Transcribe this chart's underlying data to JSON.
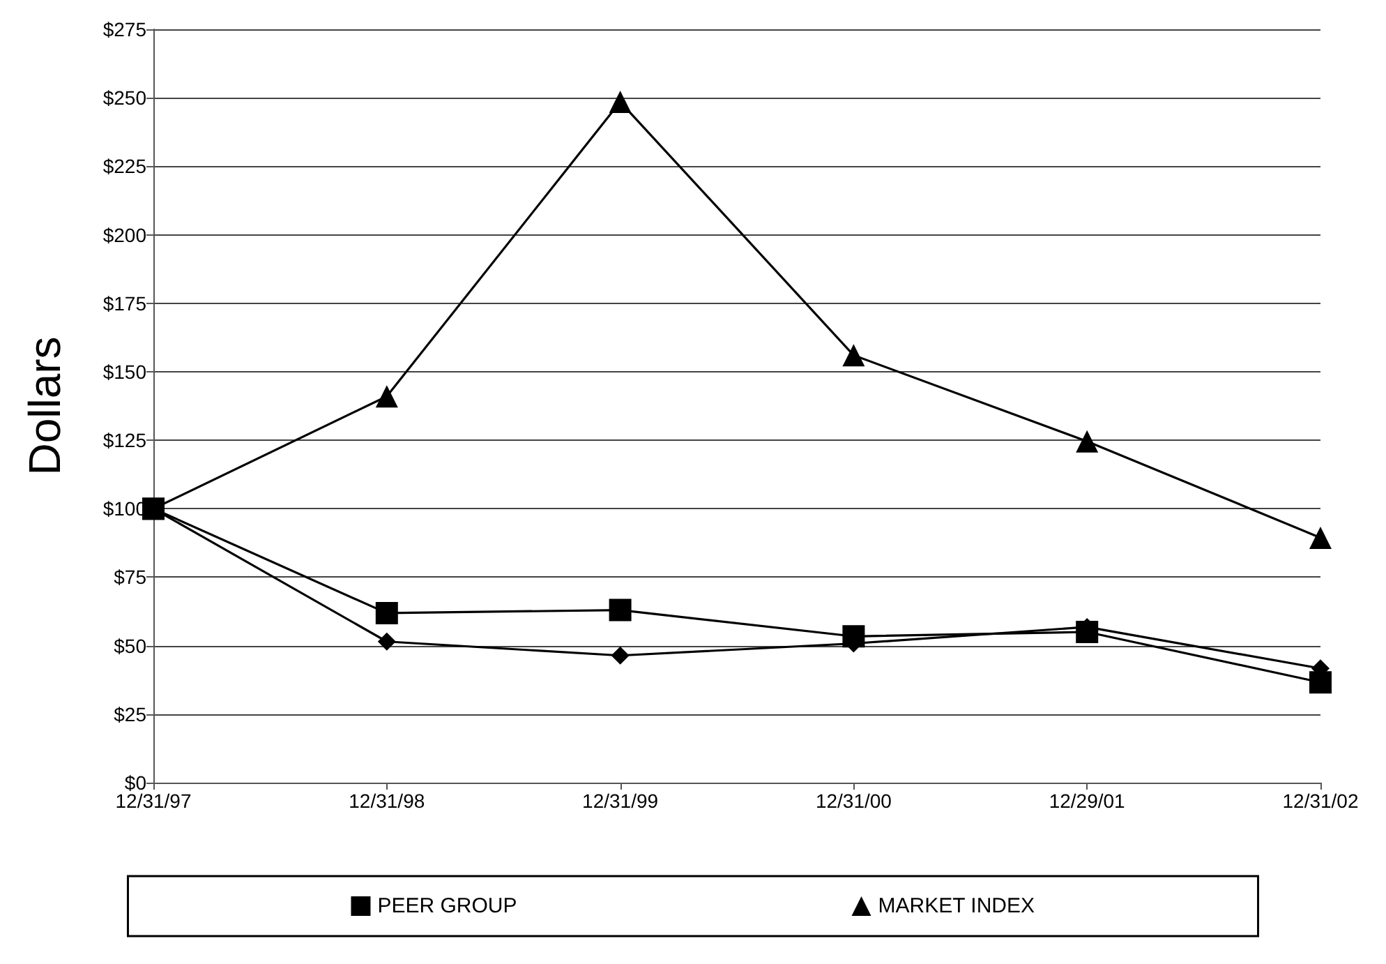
{
  "chart_data": {
    "type": "line",
    "ylabel": "Dollars",
    "categories": [
      "12/31/97",
      "12/31/98",
      "12/31/99",
      "12/31/00",
      "12/29/01",
      "12/31/02"
    ],
    "series": [
      {
        "name": "PEER GROUP",
        "color": "#000000",
        "marker": "square",
        "values": [
          100,
          61.9,
          63,
          53.4,
          55,
          36.6
        ]
      },
      {
        "name": "MARKET INDEX",
        "color": "#000000",
        "marker": "triangle",
        "values": [
          100,
          141,
          248.5,
          156,
          124.6,
          89.4
        ]
      },
      {
        "color": "#000000",
        "marker": "diamond",
        "values": [
          100,
          51.5,
          46.4,
          50.8,
          56.8,
          41.7
        ]
      }
    ],
    "ylim": [
      0,
      275
    ],
    "yticks": [
      {
        "value": 0,
        "label": "$0"
      },
      {
        "value": 25,
        "label": "$25"
      },
      {
        "value": 50,
        "label": "$50"
      },
      {
        "value": 75,
        "label": "$75"
      },
      {
        "value": 100,
        "label": "$100"
      },
      {
        "value": 125,
        "label": "$125"
      },
      {
        "value": 150,
        "label": "$150"
      },
      {
        "value": 175,
        "label": "$175"
      },
      {
        "value": 200,
        "label": "$200"
      },
      {
        "value": 225,
        "label": "$225"
      },
      {
        "value": 250,
        "label": "$250"
      },
      {
        "value": 275,
        "label": "$275"
      }
    ],
    "grid": "y",
    "legend": "bottom",
    "line_style": "solid"
  }
}
